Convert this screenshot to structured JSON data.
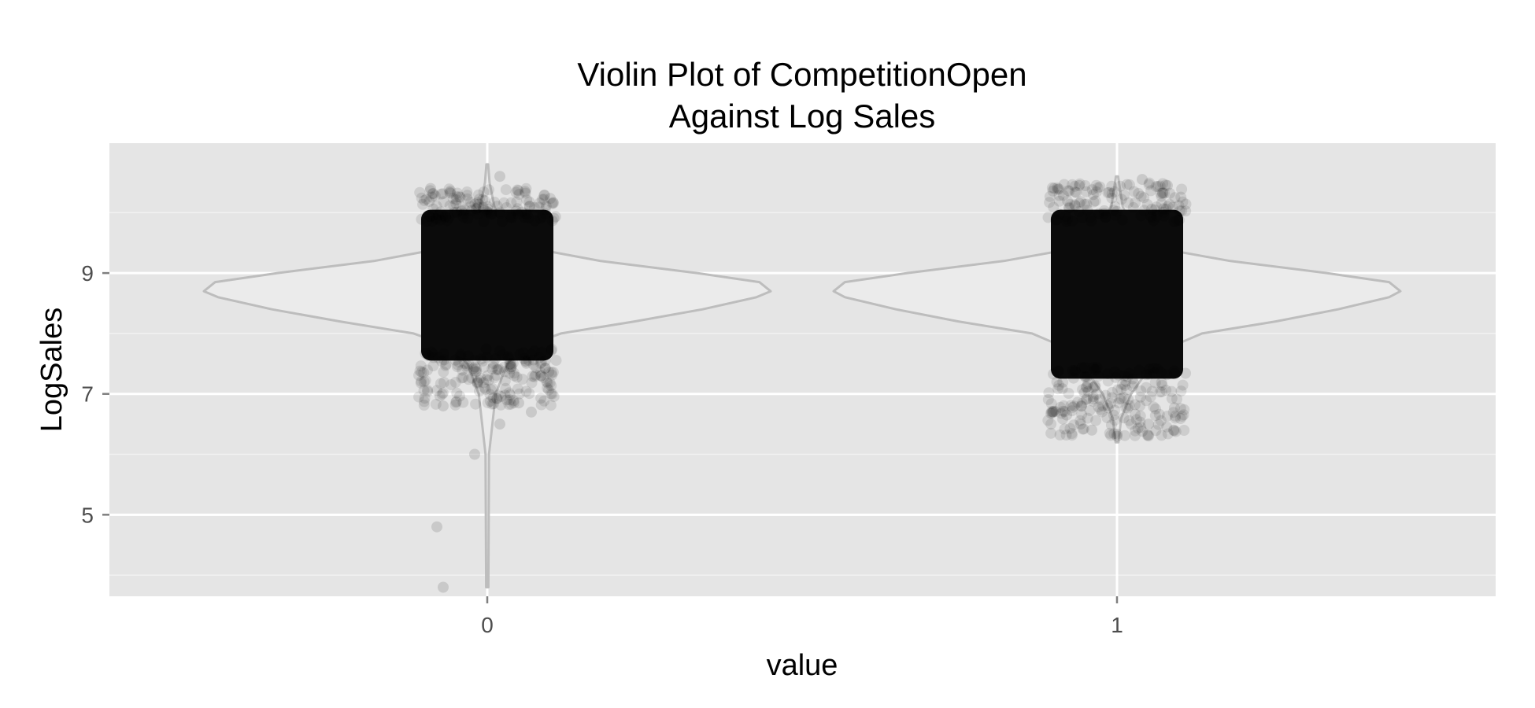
{
  "chart_data": {
    "type": "violin",
    "title": [
      "Violin Plot of CompetitionOpen",
      "Against Log Sales"
    ],
    "xlabel": "value",
    "ylabel": "LogSales",
    "categories": [
      "0",
      "1"
    ],
    "y_ticks": [
      "5",
      "7",
      "9"
    ],
    "ylim": [
      3.65,
      11.15
    ],
    "grid": true,
    "colors": {
      "panel": "#e5e5e5",
      "grid_major": "#ffffff",
      "grid_minor": "#f2f2f2",
      "violin_fill": "#ebebeb",
      "violin_outline": "#bdbdbd",
      "points": "#000000"
    },
    "violins": [
      {
        "category": "0",
        "min": 3.8,
        "max": 10.8,
        "density": [
          [
            3.8,
            0.004
          ],
          [
            6.0,
            0.006
          ],
          [
            7.0,
            0.03
          ],
          [
            7.5,
            0.07
          ],
          [
            7.8,
            0.14
          ],
          [
            8.0,
            0.26
          ],
          [
            8.2,
            0.52
          ],
          [
            8.4,
            0.76
          ],
          [
            8.6,
            0.95
          ],
          [
            8.7,
            1.0
          ],
          [
            8.85,
            0.96
          ],
          [
            9.0,
            0.74
          ],
          [
            9.2,
            0.4
          ],
          [
            9.4,
            0.17
          ],
          [
            9.7,
            0.07
          ],
          [
            10.1,
            0.025
          ],
          [
            10.5,
            0.008
          ],
          [
            10.8,
            0.003
          ]
        ]
      },
      {
        "category": "1",
        "min": 6.2,
        "max": 10.6,
        "density": [
          [
            6.2,
            0.005
          ],
          [
            6.6,
            0.015
          ],
          [
            7.0,
            0.05
          ],
          [
            7.4,
            0.11
          ],
          [
            7.8,
            0.2
          ],
          [
            8.0,
            0.3
          ],
          [
            8.2,
            0.56
          ],
          [
            8.4,
            0.78
          ],
          [
            8.6,
            0.96
          ],
          [
            8.7,
            1.0
          ],
          [
            8.85,
            0.96
          ],
          [
            9.0,
            0.74
          ],
          [
            9.2,
            0.4
          ],
          [
            9.4,
            0.16
          ],
          [
            9.7,
            0.06
          ],
          [
            10.1,
            0.02
          ],
          [
            10.6,
            0.004
          ]
        ]
      }
    ],
    "jitter_points": [
      {
        "category": "0",
        "core_range": [
          7.5,
          10.1
        ],
        "tail_range": [
          6.8,
          10.4
        ],
        "outliers": [
          [
            -0.09,
            10.4
          ],
          [
            0.06,
            10.35
          ],
          [
            0.02,
            10.6
          ],
          [
            -0.07,
            6.8
          ],
          [
            0.05,
            6.85
          ],
          [
            0.07,
            6.7
          ],
          [
            0.02,
            6.5
          ],
          [
            -0.02,
            6.0
          ],
          [
            -0.08,
            4.8
          ],
          [
            -0.07,
            3.8
          ]
        ]
      },
      {
        "category": "1",
        "core_range": [
          7.2,
          10.1
        ],
        "tail_range": [
          6.3,
          10.5
        ],
        "outliers": [
          [
            -0.06,
            10.45
          ],
          [
            0.04,
            10.55
          ],
          [
            0.08,
            10.45
          ],
          [
            -0.08,
            6.65
          ],
          [
            -0.04,
            6.4
          ],
          [
            0.0,
            6.3
          ],
          [
            0.05,
            6.5
          ],
          [
            0.09,
            6.4
          ]
        ]
      }
    ]
  }
}
